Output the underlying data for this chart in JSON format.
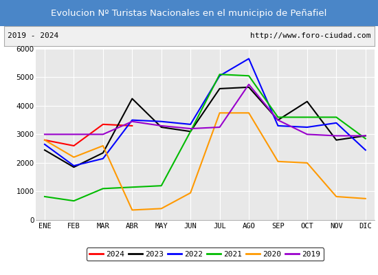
{
  "title": "Evolucion Nº Turistas Nacionales en el municipio de Peñafiel",
  "subtitle_left": "2019 - 2024",
  "subtitle_right": "http://www.foro-ciudad.com",
  "title_bg_color": "#4a86c8",
  "title_text_color": "#ffffff",
  "months": [
    "ENE",
    "FEB",
    "MAR",
    "ABR",
    "MAY",
    "JUN",
    "JUL",
    "AGO",
    "SEP",
    "OCT",
    "NOV",
    "DIC"
  ],
  "series": {
    "2024": {
      "color": "#ff0000",
      "data": [
        2800,
        2600,
        3350,
        3300,
        null,
        null,
        null,
        null,
        null,
        null,
        null,
        null
      ]
    },
    "2023": {
      "color": "#000000",
      "data": [
        2450,
        1850,
        2350,
        4250,
        3250,
        3100,
        4600,
        4650,
        3500,
        4150,
        2800,
        2950
      ]
    },
    "2022": {
      "color": "#0000ff",
      "data": [
        2650,
        1900,
        2150,
        3500,
        3450,
        3350,
        5050,
        5650,
        3300,
        3250,
        3400,
        2450
      ]
    },
    "2021": {
      "color": "#00bb00",
      "data": [
        820,
        670,
        1100,
        1150,
        1200,
        3100,
        5100,
        5050,
        3600,
        3600,
        3600,
        2850
      ]
    },
    "2020": {
      "color": "#ff9900",
      "data": [
        2800,
        2200,
        2600,
        350,
        400,
        950,
        3750,
        3750,
        2050,
        2000,
        820,
        750
      ]
    },
    "2019": {
      "color": "#9900cc",
      "data": [
        3000,
        3000,
        3000,
        3450,
        3300,
        3200,
        3250,
        4750,
        3500,
        3000,
        2950,
        2950
      ]
    }
  },
  "ylim": [
    0,
    6000
  ],
  "yticks": [
    0,
    1000,
    2000,
    3000,
    4000,
    5000,
    6000
  ],
  "legend_order": [
    "2024",
    "2023",
    "2022",
    "2021",
    "2020",
    "2019"
  ],
  "bg_plot_color": "#e8e8e8",
  "grid_color": "#ffffff"
}
